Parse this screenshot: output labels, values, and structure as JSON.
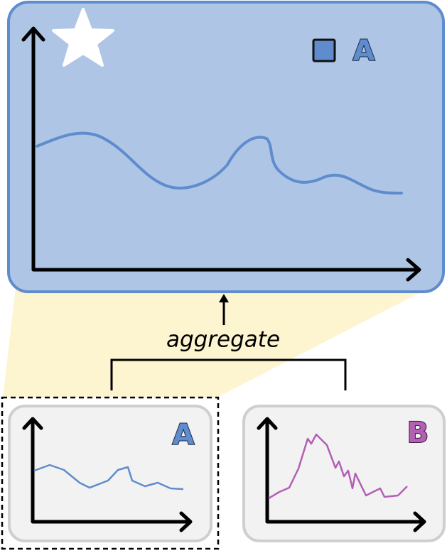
{
  "top_panel": {
    "legend_label": "A"
  },
  "arrow_label": "aggregate",
  "panels": [
    {
      "label": "A"
    },
    {
      "label": "B"
    }
  ]
}
